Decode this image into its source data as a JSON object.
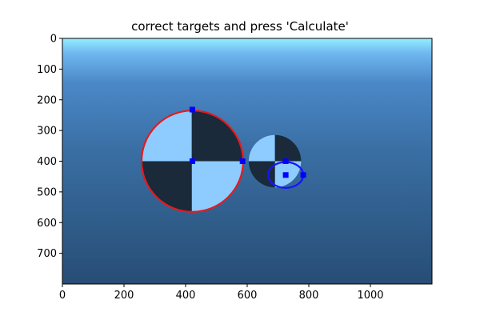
{
  "window": {
    "title": "correct targets and press 'Calculate'"
  },
  "axes": {
    "x_ticks": [
      "0",
      "200",
      "400",
      "600",
      "800",
      "1000"
    ],
    "y_ticks": [
      "0",
      "100",
      "200",
      "300",
      "400",
      "500",
      "600",
      "700"
    ],
    "xlim": [
      0,
      1200
    ],
    "ylim": [
      800,
      0
    ]
  },
  "colors": {
    "sky_top": "#8ee6ff",
    "sky_mid": "#3f7ec2",
    "background_bottom": "#264d73",
    "target_light": "#8ecbff",
    "target_dark": "#1a2a3a",
    "circle_large": "#e8191c",
    "circle_small": "#1515ff",
    "marker": "#0000ff"
  },
  "targets": [
    {
      "name": "large-target",
      "cx": 420,
      "cy": 400,
      "r": 165
    },
    {
      "name": "small-target",
      "cx": 690,
      "cy": 400,
      "r": 85
    }
  ],
  "circles": [
    {
      "name": "large-target-fit",
      "cx": 422,
      "cy": 400,
      "rx": 165,
      "ry": 165,
      "color": "#e8191c"
    },
    {
      "name": "small-target-fit",
      "cx": 725,
      "cy": 445,
      "rx": 57,
      "ry": 42,
      "color": "#1515ff"
    }
  ],
  "markers": [
    {
      "name": "large-top-handle",
      "x": 422,
      "y": 232
    },
    {
      "name": "large-center-handle",
      "x": 422,
      "y": 400
    },
    {
      "name": "large-right-handle",
      "x": 585,
      "y": 400
    },
    {
      "name": "small-top-handle",
      "x": 725,
      "y": 400
    },
    {
      "name": "small-center-handle",
      "x": 725,
      "y": 445
    },
    {
      "name": "small-right-handle",
      "x": 782,
      "y": 445
    }
  ]
}
